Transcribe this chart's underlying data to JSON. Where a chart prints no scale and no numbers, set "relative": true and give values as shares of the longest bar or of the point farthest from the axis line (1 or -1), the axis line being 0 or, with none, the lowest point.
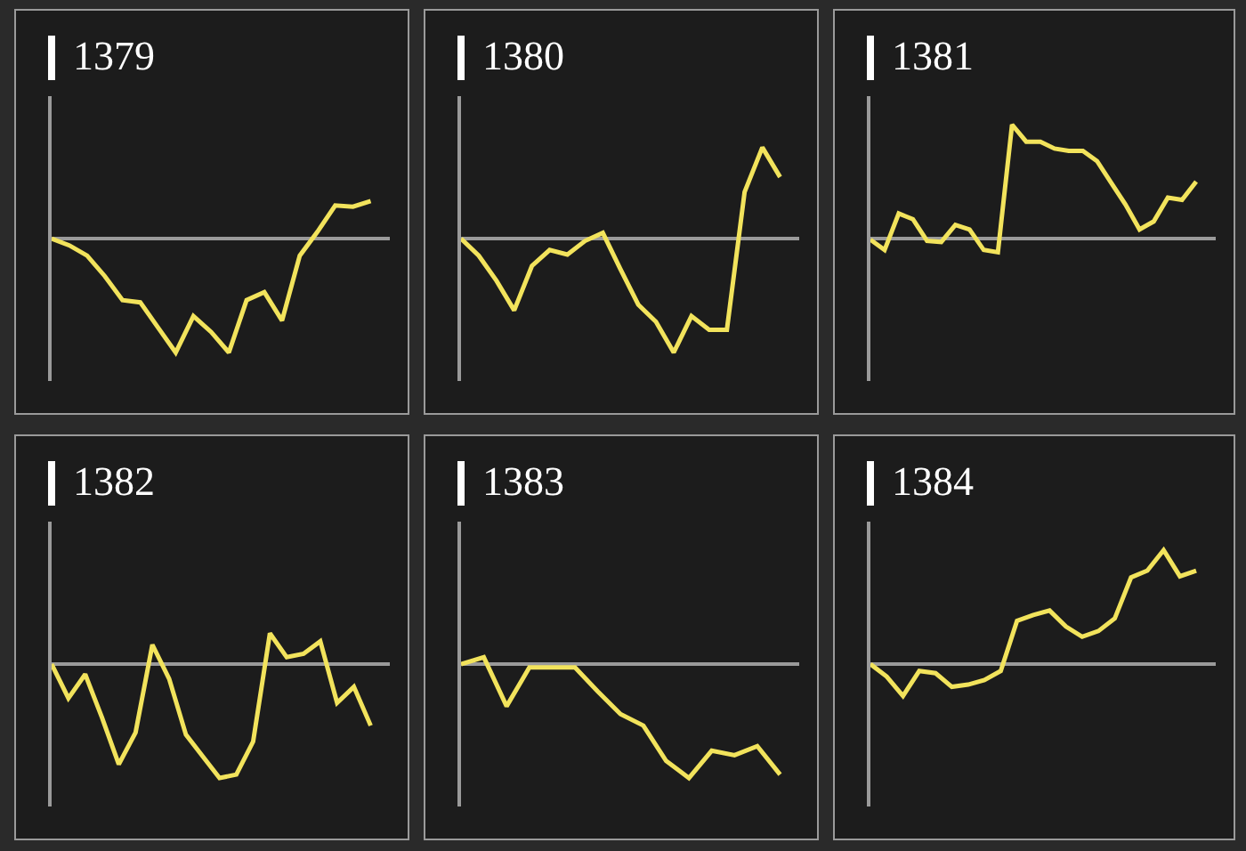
{
  "chart_data": [
    {
      "type": "line",
      "title": "1379",
      "relative": true,
      "line_style": "solid",
      "color": "#f2e35c",
      "categories": [
        null,
        null,
        null,
        null,
        null,
        null,
        null,
        null,
        null,
        null,
        null,
        null,
        null,
        null,
        null,
        null,
        null,
        null,
        null
      ],
      "values": [
        0,
        -0.06,
        -0.15,
        -0.33,
        -0.54,
        -0.56,
        -0.78,
        -1,
        -0.68,
        -0.82,
        -1,
        -0.54,
        -0.47,
        -0.72,
        -0.15,
        0.06,
        0.29,
        0.28,
        0.33
      ]
    },
    {
      "type": "line",
      "title": "1380",
      "relative": true,
      "line_style": "solid",
      "color": "#f2e35c",
      "categories": [
        null,
        null,
        null,
        null,
        null,
        null,
        null,
        null,
        null,
        null,
        null,
        null,
        null,
        null,
        null,
        null,
        null,
        null,
        null
      ],
      "values": [
        0,
        -0.15,
        -0.37,
        -0.63,
        -0.24,
        -0.1,
        -0.14,
        -0.02,
        0.05,
        -0.27,
        -0.58,
        -0.73,
        -1,
        -0.68,
        -0.8,
        -0.8,
        0.41,
        0.8,
        0.54
      ]
    },
    {
      "type": "line",
      "title": "1381",
      "relative": true,
      "line_style": "solid",
      "color": "#f2e35c",
      "categories": [
        null,
        null,
        null,
        null,
        null,
        null,
        null,
        null,
        null,
        null,
        null,
        null,
        null,
        null,
        null,
        null,
        null,
        null,
        null,
        null,
        null,
        null,
        null,
        null
      ],
      "values": [
        -0.01,
        -0.1,
        0.22,
        0.17,
        -0.02,
        -0.03,
        0.12,
        0.08,
        -0.1,
        -0.12,
        1,
        0.85,
        0.85,
        0.79,
        0.77,
        0.77,
        0.68,
        0.49,
        0.3,
        0.08,
        0.15,
        0.36,
        0.34,
        0.5
      ]
    },
    {
      "type": "line",
      "title": "1382",
      "relative": true,
      "line_style": "solid",
      "color": "#f2e35c",
      "categories": [
        null,
        null,
        null,
        null,
        null,
        null,
        null,
        null,
        null,
        null,
        null,
        null,
        null,
        null,
        null,
        null,
        null,
        null,
        null,
        null
      ],
      "values": [
        0,
        -0.3,
        -0.09,
        -0.47,
        -0.88,
        -0.6,
        0.17,
        -0.13,
        -0.62,
        -0.81,
        -1,
        -0.97,
        -0.68,
        0.27,
        0.06,
        0.09,
        0.2,
        -0.34,
        -0.2,
        -0.54
      ]
    },
    {
      "type": "line",
      "title": "1383",
      "relative": true,
      "line_style": "solid",
      "color": "#f2e35c",
      "categories": [
        null,
        null,
        null,
        null,
        null,
        null,
        null,
        null,
        null,
        null,
        null,
        null,
        null,
        null,
        null
      ],
      "values": [
        0,
        0.06,
        -0.37,
        -0.03,
        -0.03,
        -0.03,
        -0.24,
        -0.44,
        -0.54,
        -0.85,
        -1,
        -0.76,
        -0.8,
        -0.72,
        -0.97
      ]
    },
    {
      "type": "line",
      "title": "1384",
      "relative": true,
      "line_style": "solid",
      "color": "#f2e35c",
      "categories": [
        null,
        null,
        null,
        null,
        null,
        null,
        null,
        null,
        null,
        null,
        null,
        null,
        null,
        null,
        null,
        null,
        null,
        null,
        null,
        null,
        null
      ],
      "values": [
        0,
        -0.11,
        -0.28,
        -0.06,
        -0.08,
        -0.2,
        -0.18,
        -0.14,
        -0.06,
        0.38,
        0.43,
        0.47,
        0.33,
        0.24,
        0.29,
        0.4,
        0.76,
        0.82,
        1,
        0.77,
        0.82
      ]
    }
  ]
}
